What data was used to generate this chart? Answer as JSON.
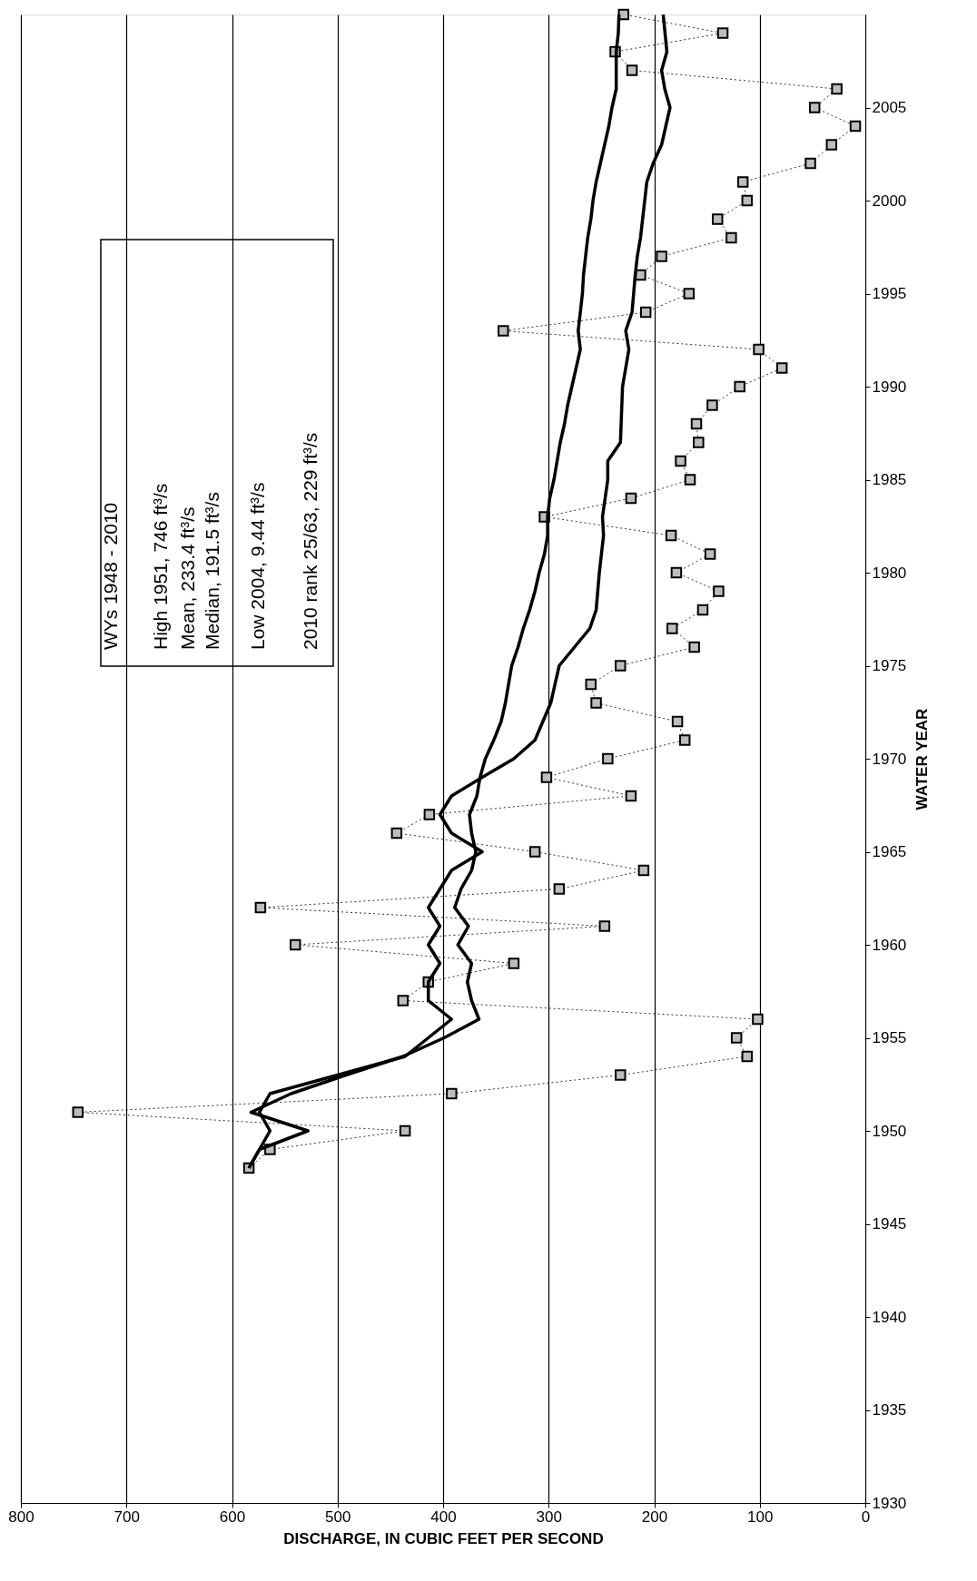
{
  "chart_data": {
    "type": "line",
    "xlabel": "DISCHARGE, IN CUBIC FEET PER SECOND",
    "ylabel": "WATER YEAR",
    "series": [
      {
        "marker": "square",
        "line_style": "dotted",
        "color": "#000000",
        "x": [
          584,
          564,
          436,
          746,
          392,
          232,
          112,
          122,
          102,
          438,
          414,
          333,
          540,
          247,
          573,
          290,
          210,
          313,
          444,
          413,
          222,
          302,
          244,
          171,
          178,
          255,
          260,
          232,
          162,
          183,
          154,
          139,
          179,
          147,
          184,
          304,
          222,
          166,
          175,
          158,
          160,
          145,
          119,
          79,
          101,
          343,
          208,
          167,
          213,
          193,
          127,
          140,
          112,
          116,
          52,
          32,
          9.44,
          48,
          27,
          221,
          237,
          135,
          229
        ],
        "values": [
          1948,
          1949,
          1950,
          1951,
          1952,
          1953,
          1954,
          1955,
          1956,
          1957,
          1958,
          1959,
          1960,
          1961,
          1962,
          1963,
          1964,
          1965,
          1966,
          1967,
          1968,
          1969,
          1970,
          1971,
          1972,
          1973,
          1974,
          1975,
          1976,
          1977,
          1978,
          1979,
          1980,
          1981,
          1982,
          1983,
          1984,
          1985,
          1986,
          1987,
          1988,
          1989,
          1990,
          1991,
          1992,
          1993,
          1994,
          1995,
          1996,
          1997,
          1998,
          1999,
          2000,
          2001,
          2002,
          2003,
          2004,
          2005,
          2006,
          2007,
          2008,
          2009,
          2010
        ]
      },
      {
        "marker": "none",
        "line_style": "solid",
        "color": "#000000",
        "x": [
          584,
          574,
          528,
          582,
          544,
          492,
          438,
          399,
          366,
          373,
          377,
          373,
          386,
          376,
          389,
          383,
          373,
          369,
          373,
          375,
          368,
          365,
          360,
          352,
          345,
          341,
          338,
          335,
          329,
          324,
          318,
          313,
          309,
          304,
          301,
          301,
          299,
          295,
          292,
          289,
          285,
          282,
          278,
          274,
          270,
          272,
          270,
          268,
          267,
          265,
          263,
          260,
          258,
          255,
          251,
          247,
          243,
          240,
          236,
          236,
          236,
          234,
          233.4
        ],
        "values": [
          1948,
          1949,
          1950,
          1951,
          1952,
          1953,
          1954,
          1955,
          1956,
          1957,
          1958,
          1959,
          1960,
          1961,
          1962,
          1963,
          1964,
          1965,
          1966,
          1967,
          1968,
          1969,
          1970,
          1971,
          1972,
          1973,
          1974,
          1975,
          1976,
          1977,
          1978,
          1979,
          1980,
          1981,
          1982,
          1983,
          1984,
          1985,
          1986,
          1987,
          1988,
          1989,
          1990,
          1991,
          1992,
          1993,
          1994,
          1995,
          1996,
          1997,
          1998,
          1999,
          2000,
          2001,
          2002,
          2003,
          2004,
          2005,
          2006,
          2007,
          2008,
          2009,
          2010
        ]
      },
      {
        "marker": "none",
        "line_style": "solid",
        "color": "#000000",
        "x": [
          584,
          574,
          564,
          574,
          564,
          500,
          436,
          414,
          392,
          414,
          414,
          403,
          414,
          403,
          414,
          403,
          392,
          363,
          392,
          403,
          392,
          363,
          333,
          313,
          298,
          290,
          261,
          255,
          252,
          248,
          249,
          244,
          244,
          232,
          230,
          224,
          227,
          221,
          218,
          216,
          213,
          207,
          201,
          193,
          185,
          190,
          193,
          188,
          191.5
        ],
        "values": [
          1948,
          1949,
          1950,
          1951,
          1952,
          1953,
          1954,
          1955,
          1956,
          1957,
          1958,
          1959,
          1960,
          1961,
          1962,
          1963,
          1964,
          1965,
          1966,
          1967,
          1968,
          1969,
          1970,
          1971,
          1973,
          1975,
          1977,
          1978,
          1980,
          1982,
          1983,
          1985,
          1986,
          1987,
          1990,
          1992,
          1993,
          1994,
          1996,
          1997,
          1998,
          2001,
          2002,
          2003,
          2005,
          2006,
          2007,
          2008,
          2010
        ]
      }
    ],
    "xlim": [
      800,
      0
    ],
    "xticks": [
      800,
      700,
      600,
      500,
      400,
      300,
      200,
      100,
      0
    ],
    "ylim": [
      1930,
      2010
    ],
    "yticks": [
      1930,
      1935,
      1940,
      1945,
      1950,
      1955,
      1960,
      1965,
      1970,
      1975,
      1980,
      1985,
      1990,
      1995,
      2000,
      2005
    ],
    "grid": "x",
    "annotations": [
      "WYs 1948 - 2010",
      "High 1951, 746 ft³/s",
      "Mean, 233.4 ft³/s",
      "Median, 191.5 ft³/s",
      "Low 2004, 9.44 ft³/s",
      "2010 rank 25/63, 229 ft³/s"
    ]
  }
}
